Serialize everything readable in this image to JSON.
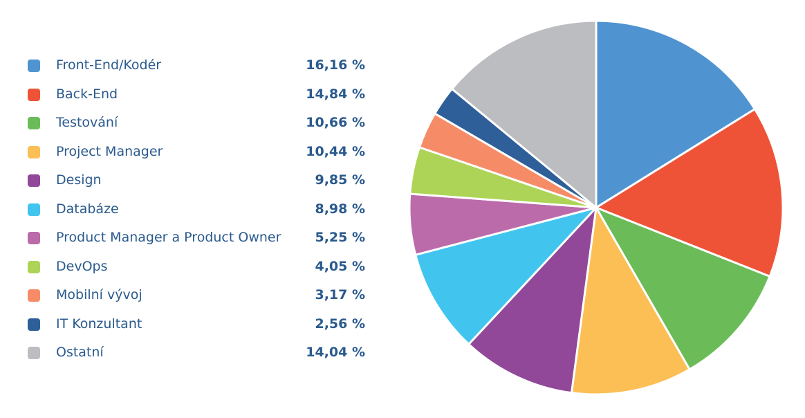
{
  "chart_data": {
    "type": "pie",
    "title": "",
    "unit_suffix": " %",
    "slices": [
      {
        "label": "Front-End/Kodér",
        "value": 16.16,
        "display": "16,16 %",
        "color": "#4f94d1"
      },
      {
        "label": "Back-End",
        "value": 14.84,
        "display": "14,84 %",
        "color": "#ef5337"
      },
      {
        "label": "Testování",
        "value": 10.66,
        "display": "10,66 %",
        "color": "#6bbc59"
      },
      {
        "label": "Project Manager",
        "value": 10.44,
        "display": "10,44 %",
        "color": "#fbbf56"
      },
      {
        "label": "Design",
        "value": 9.85,
        "display": "9,85 %",
        "color": "#914899"
      },
      {
        "label": "Databáze",
        "value": 8.98,
        "display": "8,98 %",
        "color": "#41c5ef"
      },
      {
        "label": "Product Manager a Product Owner",
        "value": 5.25,
        "display": "5,25 %",
        "color": "#bb6baa"
      },
      {
        "label": "DevOps",
        "value": 4.05,
        "display": "4,05 %",
        "color": "#add456"
      },
      {
        "label": "Mobilní vývoj",
        "value": 3.17,
        "display": "3,17 %",
        "color": "#f68c67"
      },
      {
        "label": "IT Konzultant",
        "value": 2.56,
        "display": "2,56 %",
        "color": "#2e5f99"
      },
      {
        "label": "Ostatní",
        "value": 14.04,
        "display": "14,04 %",
        "color": "#bcbdc1"
      }
    ],
    "legend_position": "left",
    "start_angle": "top",
    "direction": "clockwise"
  }
}
